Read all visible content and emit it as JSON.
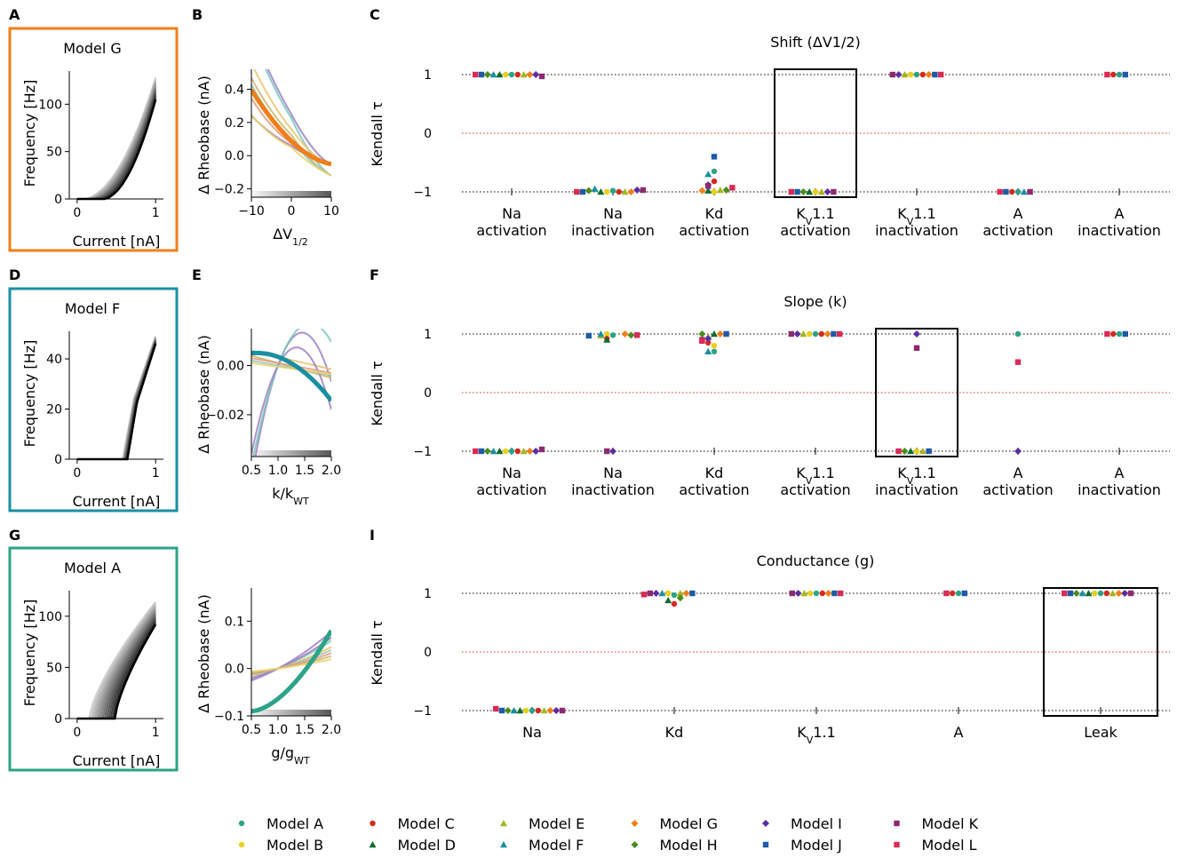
{
  "panel_labels": [
    "A",
    "B",
    "C",
    "D",
    "E",
    "F",
    "G",
    "I"
  ],
  "models": [
    {
      "name": "Model A",
      "color": "#2ca387",
      "marker": "circle"
    },
    {
      "name": "Model B",
      "color": "#e6cf1e",
      "marker": "circle"
    },
    {
      "name": "Model C",
      "color": "#d12a1f",
      "marker": "circle"
    },
    {
      "name": "Model D",
      "color": "#0f6b2e",
      "marker": "triangle"
    },
    {
      "name": "Model E",
      "color": "#a6b51e",
      "marker": "triangle"
    },
    {
      "name": "Model F",
      "color": "#1a8fa1",
      "marker": "triangle"
    },
    {
      "name": "Model G",
      "color": "#f07f1a",
      "marker": "diamond"
    },
    {
      "name": "Model H",
      "color": "#4c8c1e",
      "marker": "diamond"
    },
    {
      "name": "Model I",
      "color": "#5b2d9e",
      "marker": "diamond"
    },
    {
      "name": "Model J",
      "color": "#1f5aa8",
      "marker": "square"
    },
    {
      "name": "Model K",
      "color": "#8c2a6e",
      "marker": "square"
    },
    {
      "name": "Model L",
      "color": "#d92b55",
      "marker": "square"
    }
  ],
  "fi_panels": [
    {
      "title": "Model G",
      "border_color": "#f07f1a",
      "xlabel": "Current [nA]",
      "ylabel": "Frequency [Hz]",
      "xticks": [
        "0",
        "1"
      ],
      "yticks": [
        "0",
        "50",
        "100"
      ],
      "ylim": [
        0,
        135
      ],
      "xlim": [
        -0.1,
        1.1
      ],
      "onset_range": [
        0.1,
        0.35
      ],
      "fmax_range": [
        105,
        128
      ]
    },
    {
      "title": "Model F",
      "border_color": "#1a8fa1",
      "xlabel": "Current [nA]",
      "ylabel": "Frequency [Hz]",
      "xticks": [
        "0",
        "1"
      ],
      "yticks": [
        "0",
        "20",
        "40"
      ],
      "ylim": [
        0,
        51
      ],
      "xlim": [
        -0.1,
        1.1
      ],
      "onset_range": [
        0.58,
        0.64
      ],
      "fmax_range": [
        46,
        49
      ]
    },
    {
      "title": "Model A",
      "border_color": "#2ca387",
      "xlabel": "Current [nA]",
      "ylabel": "Frequency [Hz]",
      "xticks": [
        "0",
        "1"
      ],
      "yticks": [
        "0",
        "50",
        "100"
      ],
      "ylim": [
        0,
        125
      ],
      "xlim": [
        -0.1,
        1.1
      ],
      "onset_range": [
        0.15,
        0.48
      ],
      "fmax_range": [
        92,
        114
      ]
    }
  ],
  "rheo_panels": [
    {
      "xlabel": "ΔV1/2",
      "ylabel": "Δ Rheobase (nA)",
      "xticks": [
        "−10",
        "0",
        "10"
      ],
      "xlim": [
        -10,
        10
      ],
      "yticks": [
        "−0.2",
        "0.0",
        "0.2",
        "0.4"
      ],
      "ylim": [
        -0.25,
        0.52
      ]
    },
    {
      "xlabel": "k/kWT",
      "ylabel": "Δ Rheobase (nA)",
      "xticks": [
        "0.5",
        "1.0",
        "1.5",
        "2.0"
      ],
      "xlim": [
        0.5,
        2.0
      ],
      "yticks": [
        "−0.02",
        "0.00"
      ],
      "ylim": [
        -0.037,
        0.015
      ]
    },
    {
      "xlabel": "g/gWT",
      "ylabel": "Δ Rheobase (nA)",
      "xticks": [
        "0.5",
        "1.0",
        "1.5",
        "2.0"
      ],
      "xlim": [
        0.5,
        2.0
      ],
      "yticks": [
        "−0.1",
        "0.0",
        "0.1"
      ],
      "ylim": [
        -0.1,
        0.17
      ]
    }
  ],
  "chart_data": [
    {
      "type": "scatter",
      "title": "Shift (ΔV1/2)",
      "ylabel": "Kendall τ",
      "ylim": [
        -1.1,
        1.1
      ],
      "yticks": [
        "−1",
        "0",
        "1"
      ],
      "categories": [
        "Na\nactivation",
        "Na\ninactivation",
        "Kd\nactivation",
        "KV1.1\nactivation",
        "KV1.1\ninactivation",
        "A\nactivation",
        "A\ninactivation"
      ],
      "highlight": 3,
      "series": [
        [
          1,
          1,
          1,
          1,
          1,
          1,
          1,
          1,
          1,
          1,
          0.97,
          1
        ],
        [
          -0.98,
          -1,
          -1,
          -1,
          -1,
          -0.95,
          -1,
          -0.98,
          -0.97,
          -1,
          -0.97,
          -1
        ],
        [
          -0.65,
          -1,
          -0.82,
          -0.98,
          -0.97,
          -0.7,
          -0.98,
          -0.97,
          -0.88,
          -0.4,
          -0.9,
          -0.93
        ],
        [
          null,
          -1,
          null,
          -1,
          -1,
          null,
          null,
          -1,
          -1,
          -1,
          -1,
          -1
        ],
        [
          1,
          1,
          1,
          null,
          1,
          null,
          1,
          null,
          1,
          1,
          1,
          1
        ],
        [
          -1,
          null,
          -1,
          null,
          null,
          -1,
          null,
          null,
          null,
          -1,
          -1,
          -1
        ],
        [
          1,
          null,
          1,
          null,
          null,
          null,
          null,
          null,
          null,
          1,
          null,
          1
        ]
      ]
    },
    {
      "type": "scatter",
      "title": "Slope (k)",
      "ylabel": "Kendall τ",
      "ylim": [
        -1.1,
        1.1
      ],
      "yticks": [
        "−1",
        "0",
        "1"
      ],
      "categories": [
        "Na\nactivation",
        "Na\ninactivation",
        "Kd\nactivation",
        "KV1.1\nactivation",
        "KV1.1\ninactivation",
        "A\nactivation",
        "A\ninactivation"
      ],
      "highlight": 4,
      "series": [
        [
          -1,
          -1,
          -1,
          -1,
          -1,
          -1,
          -1,
          -1,
          -1,
          -1,
          -0.97,
          -1
        ],
        [
          0.98,
          1,
          0.92,
          0.9,
          0.97,
          1,
          1,
          0.98,
          -1,
          0.97,
          -1,
          0.98
        ],
        [
          0.7,
          0.8,
          0.85,
          1,
          0.95,
          0.7,
          1,
          1,
          0.92,
          1,
          0.9,
          0.88
        ],
        [
          1,
          1,
          1,
          null,
          1,
          null,
          1,
          null,
          1,
          1,
          1,
          1
        ],
        [
          null,
          -1,
          null,
          -1,
          -1,
          null,
          null,
          -1,
          1,
          -1,
          0.76,
          -1
        ],
        [
          1,
          null,
          null,
          null,
          null,
          null,
          null,
          null,
          -1,
          null,
          null,
          0.52
        ],
        [
          1,
          null,
          1,
          null,
          null,
          null,
          null,
          null,
          null,
          1,
          null,
          1
        ]
      ]
    },
    {
      "type": "scatter",
      "title": "Conductance (g)",
      "ylabel": "Kendall τ",
      "ylim": [
        -1.1,
        1.1
      ],
      "yticks": [
        "−1",
        "0",
        "1"
      ],
      "categories": [
        "Na",
        "Kd",
        "KV1.1",
        "A",
        "Leak"
      ],
      "highlight": 4,
      "series": [
        [
          -1,
          -1,
          -1,
          -1,
          -1,
          -1,
          -1,
          -1,
          -1,
          -1,
          -1,
          -0.97
        ],
        [
          0.97,
          1,
          0.82,
          0.88,
          1,
          1,
          1,
          0.92,
          1,
          1,
          1,
          0.98
        ],
        [
          1,
          1,
          1,
          null,
          1,
          null,
          1,
          null,
          1,
          1,
          1,
          1
        ],
        [
          1,
          null,
          1,
          null,
          null,
          null,
          null,
          null,
          null,
          1,
          null,
          1
        ],
        [
          1,
          1,
          1,
          1,
          1,
          1,
          1,
          1,
          1,
          1,
          1,
          1
        ]
      ]
    }
  ]
}
